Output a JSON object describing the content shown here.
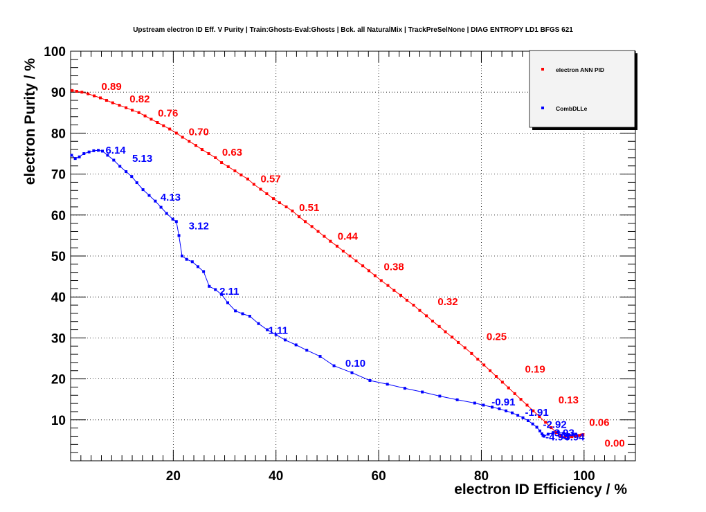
{
  "chart_data": {
    "type": "line",
    "title": "Upstream electron ID Eff. V Purity | Train:Ghosts-Eval:Ghosts | Bck. all NaturalMix | TrackPreSelNone | DIAG ENTROPY LD1 BFGS 621",
    "xlabel": "electron ID Efficiency / %",
    "ylabel": "electron Purity / %",
    "xlim": [
      0,
      110
    ],
    "ylim": [
      0,
      100
    ],
    "x_ticks": [
      20,
      40,
      60,
      80,
      100
    ],
    "y_ticks": [
      10,
      20,
      30,
      40,
      50,
      60,
      70,
      80,
      90,
      100
    ],
    "grid": true,
    "legend_position": "top-right",
    "series": [
      {
        "name": "electron ANN PID",
        "color": "#ff0000",
        "x": [
          0.3,
          1.2,
          2.2,
          3.4,
          4.6,
          5.8,
          7.0,
          8.2,
          9.5,
          10.8,
          12.0,
          13.3,
          14.5,
          15.7,
          16.9,
          18.1,
          19.3,
          20.6,
          21.8,
          23.1,
          24.4,
          25.6,
          26.9,
          28.2,
          29.4,
          30.7,
          32.0,
          33.2,
          34.5,
          35.7,
          37.0,
          38.2,
          39.5,
          40.7,
          42.0,
          43.2,
          44.5,
          45.7,
          47.0,
          48.2,
          49.4,
          50.6,
          51.9,
          53.1,
          54.4,
          55.6,
          56.9,
          58.1,
          59.3,
          60.5,
          61.8,
          63.0,
          64.3,
          65.5,
          66.8,
          68.0,
          69.3,
          70.5,
          71.8,
          73.0,
          74.3,
          75.5,
          76.8,
          78.1,
          79.3,
          80.5,
          81.7,
          82.9,
          84.1,
          85.3,
          86.5,
          87.7,
          88.9,
          90.1,
          91.3,
          92.5,
          93.6,
          94.6,
          95.5,
          96.3,
          97.0,
          97.6,
          98.2,
          98.7,
          99.1,
          99.5,
          99.8
        ],
        "y": [
          90.4,
          90.2,
          90.0,
          89.6,
          89.1,
          88.6,
          88.0,
          87.4,
          86.8,
          86.2,
          85.6,
          85.0,
          84.2,
          83.4,
          82.6,
          81.8,
          81.0,
          80.0,
          79.0,
          78.0,
          77.0,
          76.0,
          75.0,
          74.0,
          72.8,
          71.8,
          70.8,
          69.8,
          68.8,
          67.5,
          66.3,
          65.2,
          64.0,
          63.0,
          62.0,
          61.0,
          59.6,
          58.4,
          57.2,
          56.0,
          54.8,
          53.6,
          52.4,
          51.2,
          50.0,
          48.8,
          47.6,
          46.4,
          45.2,
          44.0,
          42.8,
          41.6,
          40.4,
          39.2,
          38.0,
          36.7,
          35.4,
          34.1,
          32.8,
          31.5,
          30.2,
          28.9,
          27.6,
          26.2,
          24.8,
          23.4,
          22.0,
          20.6,
          19.2,
          17.8,
          16.4,
          15.0,
          13.6,
          12.2,
          10.8,
          9.4,
          8.1,
          6.9,
          6.1,
          5.8,
          5.8,
          5.9,
          6.0,
          6.1,
          6.2,
          6.3,
          6.4
        ],
        "annotations": [
          {
            "x": 6.0,
            "y": 90.5,
            "label": "0.89"
          },
          {
            "x": 11.5,
            "y": 87.5,
            "label": "0.82"
          },
          {
            "x": 17.0,
            "y": 84.0,
            "label": "0.76"
          },
          {
            "x": 23.0,
            "y": 79.5,
            "label": "0.70"
          },
          {
            "x": 29.5,
            "y": 74.5,
            "label": "0.63"
          },
          {
            "x": 37.0,
            "y": 68.0,
            "label": "0.57"
          },
          {
            "x": 44.5,
            "y": 61.0,
            "label": "0.51"
          },
          {
            "x": 52.0,
            "y": 54.0,
            "label": "0.44"
          },
          {
            "x": 61.0,
            "y": 46.5,
            "label": "0.38"
          },
          {
            "x": 71.5,
            "y": 38.0,
            "label": "0.32"
          },
          {
            "x": 81.0,
            "y": 29.5,
            "label": "0.25"
          },
          {
            "x": 88.5,
            "y": 21.5,
            "label": "0.19"
          },
          {
            "x": 95.0,
            "y": 14.0,
            "label": "0.13"
          },
          {
            "x": 101.0,
            "y": 8.5,
            "label": "0.06"
          },
          {
            "x": 104.0,
            "y": 3.5,
            "label": "0.00"
          }
        ]
      },
      {
        "name": "CombDLLe",
        "color": "#0000ff",
        "x": [
          0.2,
          0.9,
          1.7,
          2.6,
          3.6,
          4.5,
          5.4,
          6.2,
          7.2,
          8.4,
          9.6,
          10.8,
          11.9,
          12.9,
          14.1,
          15.3,
          16.5,
          17.6,
          18.7,
          19.9,
          20.6,
          21.1,
          21.7,
          22.6,
          23.7,
          24.8,
          25.9,
          27.0,
          28.2,
          29.4,
          30.6,
          32.1,
          33.5,
          34.9,
          36.6,
          38.3,
          40.0,
          41.8,
          43.9,
          46.0,
          48.6,
          51.3,
          54.8,
          58.3,
          61.7,
          65.1,
          68.5,
          71.9,
          75.3,
          78.7,
          80.4,
          82.1,
          83.5,
          84.8,
          86.0,
          87.1,
          88.1,
          89.1,
          90.0,
          90.8,
          91.4,
          91.8,
          92.0,
          92.2,
          93.0,
          94.0,
          95.0,
          96.0,
          97.0,
          97.8,
          98.4
        ],
        "y": [
          74.6,
          73.8,
          74.2,
          75.0,
          75.4,
          75.7,
          75.8,
          75.6,
          74.6,
          73.4,
          71.9,
          70.6,
          69.4,
          67.9,
          66.2,
          64.8,
          63.4,
          61.9,
          60.4,
          59.0,
          58.4,
          55.0,
          50.0,
          49.2,
          48.6,
          47.4,
          46.2,
          42.6,
          41.8,
          40.6,
          38.6,
          36.6,
          35.9,
          35.3,
          33.5,
          32.0,
          30.8,
          29.5,
          28.3,
          27.0,
          25.5,
          23.2,
          21.5,
          19.6,
          18.7,
          17.7,
          16.8,
          15.8,
          14.9,
          14.1,
          13.6,
          13.1,
          12.7,
          12.2,
          11.7,
          11.1,
          10.5,
          9.8,
          9.0,
          8.2,
          7.3,
          6.6,
          6.2,
          6.0,
          6.5,
          6.9,
          7.0,
          6.7,
          6.4,
          6.6,
          6.5
        ],
        "annotations": [
          {
            "x": 6.8,
            "y": 75.0,
            "label": "6.14"
          },
          {
            "x": 12.0,
            "y": 73.0,
            "label": "5.13"
          },
          {
            "x": 17.5,
            "y": 63.5,
            "label": "4.13"
          },
          {
            "x": 23.0,
            "y": 56.5,
            "label": "3.12"
          },
          {
            "x": 29.0,
            "y": 40.5,
            "label": "2.11"
          },
          {
            "x": 38.5,
            "y": 31.0,
            "label": "1.11"
          },
          {
            "x": 53.5,
            "y": 23.0,
            "label": "0.10"
          },
          {
            "x": 82.0,
            "y": 13.5,
            "label": "-0.91"
          },
          {
            "x": 88.5,
            "y": 11.0,
            "label": "-1.91"
          },
          {
            "x": 92.0,
            "y": 8.0,
            "label": "-2.92"
          },
          {
            "x": 93.5,
            "y": 6.0,
            "label": "-3.93"
          },
          {
            "x": 92.5,
            "y": 5.0,
            "label": "-4.94"
          },
          {
            "x": 95.5,
            "y": 5.0,
            "label": "-5.94"
          }
        ]
      }
    ]
  }
}
